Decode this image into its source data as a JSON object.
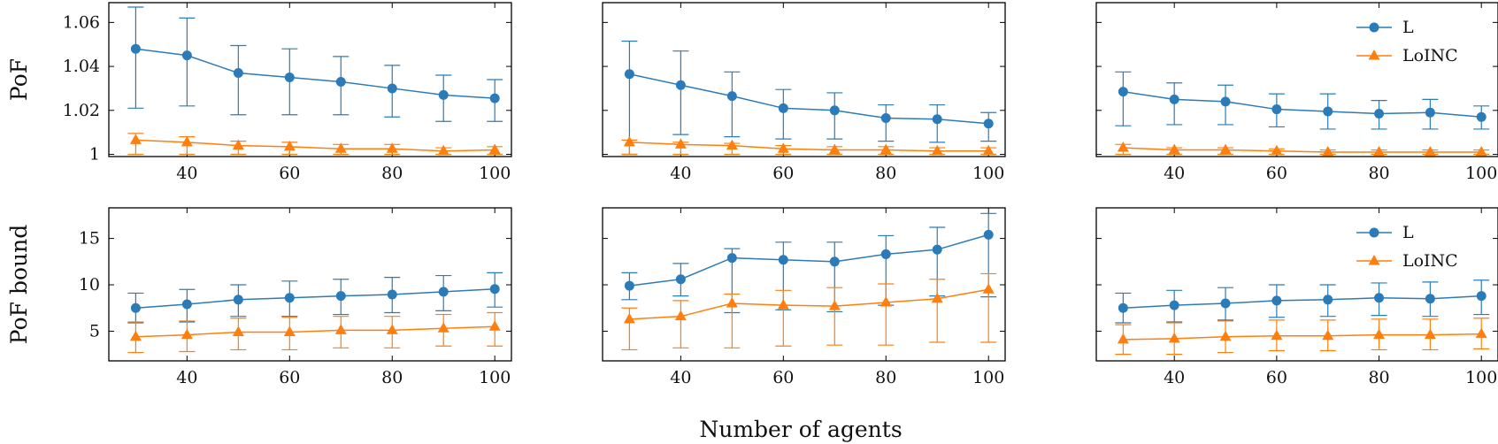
{
  "figure": {
    "xlabel": "Number of agents",
    "colors": {
      "L": "#2b7bb9",
      "LoINC": "#ff7f0e"
    }
  },
  "chart_data": [
    {
      "type": "line",
      "row_label": "PoF",
      "column": 1,
      "x": [
        30,
        40,
        50,
        60,
        70,
        80,
        90,
        100
      ],
      "xticks": [
        40,
        60,
        80,
        100
      ],
      "xlim": [
        27,
        101
      ],
      "ylim": [
        0.999,
        1.069
      ],
      "yticks": [
        1,
        1.02,
        1.04,
        1.06
      ],
      "ytick_labels": [
        "1",
        "1.02",
        "1.04",
        "1.06"
      ],
      "show_yticklabels": true,
      "legend": null,
      "series": [
        {
          "name": "L",
          "marker": "circle",
          "values": [
            1.048,
            1.045,
            1.037,
            1.035,
            1.033,
            1.03,
            1.027,
            1.0255
          ],
          "err_low": [
            1.021,
            1.022,
            1.018,
            1.018,
            1.018,
            1.017,
            1.015,
            1.015
          ],
          "err_high": [
            1.067,
            1.062,
            1.0495,
            1.048,
            1.0445,
            1.0405,
            1.036,
            1.034
          ]
        },
        {
          "name": "LoINC",
          "marker": "triangle",
          "values": [
            1.0065,
            1.0055,
            1.004,
            1.0035,
            1.0025,
            1.0025,
            1.0015,
            1.002
          ],
          "err_low": [
            1.0,
            1.0,
            1.0,
            1.0,
            1.0,
            1.0,
            1.0,
            1.0
          ],
          "err_high": [
            1.0095,
            1.008,
            1.006,
            1.0055,
            1.0045,
            1.0045,
            1.003,
            1.0035
          ]
        }
      ]
    },
    {
      "type": "line",
      "row_label": "",
      "column": 2,
      "x": [
        30,
        40,
        50,
        60,
        70,
        80,
        90,
        100
      ],
      "xticks": [
        40,
        60,
        80,
        100
      ],
      "xlim": [
        27,
        101
      ],
      "ylim": [
        0.999,
        1.069
      ],
      "yticks": [
        1,
        1.02,
        1.04,
        1.06
      ],
      "ytick_labels": [
        "1",
        "1.02",
        "1.04",
        "1.06"
      ],
      "show_yticklabels": false,
      "legend": null,
      "series": [
        {
          "name": "L",
          "marker": "circle",
          "values": [
            1.0365,
            1.0315,
            1.0265,
            1.021,
            1.02,
            1.0165,
            1.016,
            1.014
          ],
          "err_low": [
            1.0,
            1.009,
            1.008,
            1.007,
            1.007,
            1.006,
            1.0055,
            1.006
          ],
          "err_high": [
            1.0515,
            1.047,
            1.0375,
            1.0295,
            1.028,
            1.0225,
            1.0225,
            1.019
          ]
        },
        {
          "name": "LoINC",
          "marker": "triangle",
          "values": [
            1.0055,
            1.0045,
            1.004,
            1.0025,
            1.002,
            1.002,
            1.0015,
            1.0015
          ],
          "err_low": [
            1.0,
            1.0,
            1.0,
            1.0,
            1.0,
            1.0,
            1.0,
            1.0
          ],
          "err_high": [
            1.0065,
            1.0055,
            1.005,
            1.004,
            1.0035,
            1.0035,
            1.003,
            1.003
          ]
        }
      ]
    },
    {
      "type": "line",
      "row_label": "",
      "column": 3,
      "x": [
        30,
        40,
        50,
        60,
        70,
        80,
        90,
        100
      ],
      "xticks": [
        40,
        60,
        80,
        100
      ],
      "xlim": [
        27,
        101
      ],
      "ylim": [
        0.999,
        1.069
      ],
      "yticks": [
        1,
        1.02,
        1.04,
        1.06
      ],
      "ytick_labels": [
        "1",
        "1.02",
        "1.04",
        "1.06"
      ],
      "show_yticklabels": false,
      "legend": {
        "position": "top-right",
        "entries": [
          "L",
          "LoINC"
        ]
      },
      "series": [
        {
          "name": "L",
          "marker": "circle",
          "values": [
            1.0285,
            1.025,
            1.024,
            1.0205,
            1.0195,
            1.0185,
            1.019,
            1.017
          ],
          "err_low": [
            1.013,
            1.0135,
            1.0135,
            1.0125,
            1.0115,
            1.0115,
            1.0115,
            1.0115
          ],
          "err_high": [
            1.0375,
            1.0325,
            1.0315,
            1.0275,
            1.0275,
            1.0245,
            1.025,
            1.022
          ]
        },
        {
          "name": "LoINC",
          "marker": "triangle",
          "values": [
            1.003,
            1.002,
            1.002,
            1.0015,
            1.001,
            1.001,
            1.001,
            1.001
          ],
          "err_low": [
            1.0,
            1.0,
            1.0,
            1.0,
            1.0,
            1.0,
            1.0,
            1.0
          ],
          "err_high": [
            1.0045,
            1.003,
            1.003,
            1.0025,
            1.002,
            1.002,
            1.002,
            1.002
          ]
        }
      ]
    },
    {
      "type": "line",
      "row_label": "PoF bound",
      "column": 1,
      "x": [
        30,
        40,
        50,
        60,
        70,
        80,
        90,
        100
      ],
      "xticks": [
        40,
        60,
        80,
        100
      ],
      "xlim": [
        27,
        101
      ],
      "ylim": [
        1.8,
        18.3
      ],
      "yticks": [
        5,
        10,
        15
      ],
      "ytick_labels": [
        "5",
        "10",
        "15"
      ],
      "show_yticklabels": true,
      "legend": null,
      "series": [
        {
          "name": "L",
          "marker": "circle",
          "values": [
            7.5,
            7.9,
            8.4,
            8.6,
            8.8,
            8.95,
            9.25,
            9.55
          ],
          "err_low": [
            5.9,
            6.0,
            6.6,
            6.6,
            6.8,
            7.0,
            7.2,
            7.6
          ],
          "err_high": [
            9.1,
            9.5,
            10.0,
            10.4,
            10.6,
            10.8,
            11.0,
            11.3
          ]
        },
        {
          "name": "LoINC",
          "marker": "triangle",
          "values": [
            4.4,
            4.6,
            4.9,
            4.9,
            5.1,
            5.1,
            5.3,
            5.5
          ],
          "err_low": [
            2.7,
            2.8,
            3.0,
            3.0,
            3.2,
            3.2,
            3.4,
            3.4
          ],
          "err_high": [
            6.0,
            6.1,
            6.4,
            6.5,
            6.6,
            6.6,
            6.8,
            7.0
          ]
        }
      ]
    },
    {
      "type": "line",
      "row_label": "",
      "column": 2,
      "x": [
        30,
        40,
        50,
        60,
        70,
        80,
        90,
        100
      ],
      "xticks": [
        40,
        60,
        80,
        100
      ],
      "xlim": [
        27,
        101
      ],
      "ylim": [
        1.8,
        18.3
      ],
      "yticks": [
        5,
        10,
        15
      ],
      "ytick_labels": [
        "5",
        "10",
        "15"
      ],
      "show_yticklabels": false,
      "legend": null,
      "series": [
        {
          "name": "L",
          "marker": "circle",
          "values": [
            9.9,
            10.6,
            12.9,
            12.7,
            12.5,
            13.3,
            13.8,
            15.4
          ],
          "err_low": [
            8.4,
            8.8,
            7.0,
            7.3,
            7.1,
            7.8,
            8.8,
            8.7
          ],
          "err_high": [
            11.3,
            12.3,
            13.9,
            14.6,
            14.6,
            15.3,
            16.2,
            17.7
          ]
        },
        {
          "name": "LoINC",
          "marker": "triangle",
          "values": [
            6.3,
            6.6,
            8.0,
            7.8,
            7.7,
            8.1,
            8.5,
            9.5
          ],
          "err_low": [
            3.0,
            3.2,
            3.2,
            3.4,
            3.5,
            3.5,
            3.8,
            3.8
          ],
          "err_high": [
            7.5,
            8.3,
            9.0,
            9.4,
            9.7,
            10.1,
            10.6,
            11.2
          ]
        }
      ]
    },
    {
      "type": "line",
      "row_label": "",
      "column": 3,
      "x": [
        30,
        40,
        50,
        60,
        70,
        80,
        90,
        100
      ],
      "xticks": [
        40,
        60,
        80,
        100
      ],
      "xlim": [
        27,
        101
      ],
      "ylim": [
        1.8,
        18.3
      ],
      "yticks": [
        5,
        10,
        15
      ],
      "ytick_labels": [
        "5",
        "10",
        "15"
      ],
      "show_yticklabels": false,
      "legend": {
        "position": "top-right",
        "entries": [
          "L",
          "LoINC"
        ]
      },
      "series": [
        {
          "name": "L",
          "marker": "circle",
          "values": [
            7.5,
            7.8,
            8.0,
            8.3,
            8.4,
            8.6,
            8.5,
            8.8
          ],
          "err_low": [
            5.9,
            6.0,
            6.2,
            6.5,
            6.6,
            6.7,
            6.6,
            6.8
          ],
          "err_high": [
            9.1,
            9.4,
            9.7,
            10.0,
            10.0,
            10.2,
            10.3,
            10.5
          ]
        },
        {
          "name": "LoINC",
          "marker": "triangle",
          "values": [
            4.1,
            4.2,
            4.4,
            4.5,
            4.5,
            4.6,
            4.6,
            4.7
          ],
          "err_low": [
            2.5,
            2.5,
            2.7,
            2.9,
            2.9,
            3.0,
            3.0,
            3.1
          ],
          "err_high": [
            5.7,
            5.9,
            6.1,
            6.2,
            6.2,
            6.3,
            6.3,
            6.4
          ]
        }
      ]
    }
  ]
}
